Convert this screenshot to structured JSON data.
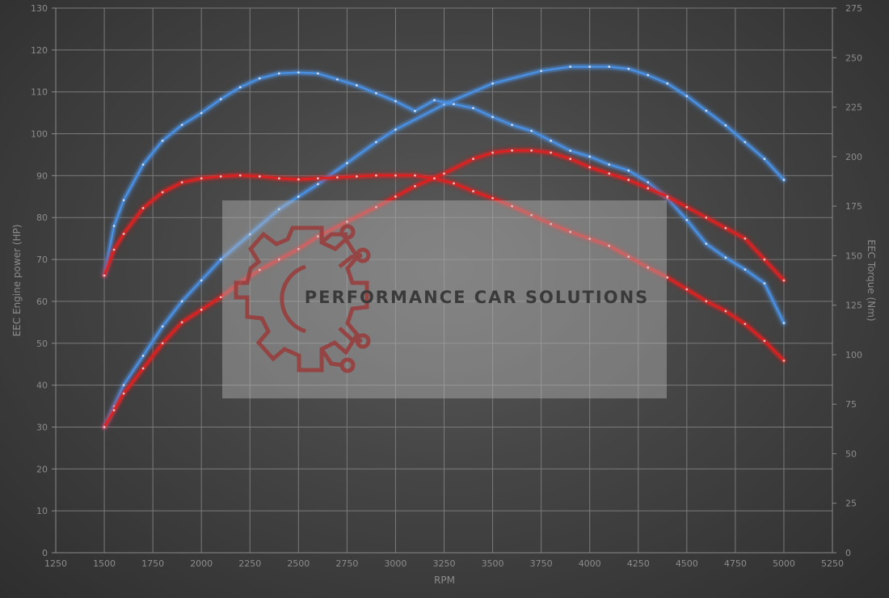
{
  "chart_data": {
    "type": "line",
    "xlabel": "RPM",
    "ylabel_left": "EEC Engine power (HP)",
    "ylabel_right": "EEC Torque (Nm)",
    "xlim": [
      1250,
      5250
    ],
    "ylim_left": [
      0,
      130
    ],
    "ylim_right": [
      0,
      275
    ],
    "x_ticks": [
      1250,
      1500,
      1750,
      2000,
      2250,
      2500,
      2750,
      3000,
      3250,
      3500,
      3750,
      4000,
      4250,
      4500,
      4750,
      5000,
      5250
    ],
    "y_left_ticks": [
      0,
      10,
      20,
      30,
      40,
      50,
      60,
      70,
      80,
      90,
      100,
      110,
      120,
      130
    ],
    "y_right_ticks": [
      0,
      25,
      50,
      75,
      100,
      125,
      150,
      175,
      200,
      225,
      250,
      275
    ],
    "grid": true,
    "series": [
      {
        "axis": "left",
        "color": "#4a90e2",
        "x": [
          1500,
          1550,
          1600,
          1700,
          1800,
          1900,
          2000,
          2100,
          2250,
          2400,
          2500,
          2600,
          2750,
          2900,
          3000,
          3250,
          3500,
          3750,
          3900,
          4000,
          4100,
          4200,
          4300,
          4400,
          4500,
          4600,
          4700,
          4800,
          4900,
          5000
        ],
        "y": [
          30,
          35,
          40,
          47,
          54,
          60,
          65,
          70,
          76,
          82,
          85,
          88,
          93,
          98,
          101,
          107,
          112,
          115,
          116,
          116,
          116,
          115.5,
          114,
          112,
          109,
          105.5,
          102,
          98,
          94,
          89
        ]
      },
      {
        "axis": "right",
        "color": "#4a90e2",
        "x": [
          1500,
          1550,
          1600,
          1700,
          1800,
          1900,
          2000,
          2100,
          2200,
          2300,
          2400,
          2500,
          2600,
          2700,
          2800,
          2900,
          3000,
          3100,
          3200,
          3300,
          3400,
          3500,
          3600,
          3700,
          3800,
          3900,
          4000,
          4100,
          4200,
          4300,
          4400,
          4500,
          4600,
          4700,
          4800,
          4900,
          5000
        ],
        "y": [
          140,
          165,
          178,
          196,
          208,
          216,
          222,
          229,
          235,
          239.5,
          242,
          242.5,
          242,
          239,
          236,
          232,
          228,
          223,
          228.5,
          226.5,
          224.5,
          220,
          216,
          213,
          208,
          203,
          200,
          196,
          193,
          187,
          179,
          168,
          156,
          149,
          143,
          136,
          116
        ]
      },
      {
        "axis": "left",
        "color": "#e02020",
        "x": [
          1500,
          1550,
          1600,
          1700,
          1800,
          1900,
          2000,
          2100,
          2200,
          2300,
          2400,
          2500,
          2600,
          2750,
          2900,
          3000,
          3100,
          3250,
          3400,
          3500,
          3600,
          3700,
          3800,
          3900,
          4000,
          4100,
          4200,
          4300,
          4400,
          4500,
          4600,
          4700,
          4800,
          4900,
          5000
        ],
        "y": [
          30,
          34,
          38,
          44,
          50,
          55,
          58,
          61,
          64.5,
          67.5,
          70,
          72.5,
          75.5,
          79,
          82.5,
          85,
          87.5,
          90.5,
          94,
          95.5,
          96,
          96,
          95.5,
          94,
          92,
          90.5,
          89,
          87,
          85,
          82.5,
          80,
          77.5,
          75,
          70,
          65
        ]
      },
      {
        "axis": "right",
        "color": "#e02020",
        "x": [
          1500,
          1550,
          1600,
          1700,
          1800,
          1900,
          2000,
          2100,
          2200,
          2300,
          2400,
          2500,
          2600,
          2700,
          2800,
          2900,
          3000,
          3100,
          3200,
          3300,
          3400,
          3500,
          3600,
          3700,
          3800,
          3900,
          4000,
          4100,
          4200,
          4300,
          4400,
          4500,
          4600,
          4700,
          4800,
          4900,
          5000
        ],
        "y": [
          140,
          153,
          161,
          174,
          182,
          187,
          189,
          190,
          190.5,
          190,
          189,
          188.5,
          189,
          189.5,
          190,
          190.5,
          190.5,
          190.5,
          189,
          186.5,
          182.5,
          179,
          175,
          170.5,
          166,
          162,
          158.5,
          155,
          149.5,
          144,
          139,
          133,
          127,
          122,
          115.5,
          107,
          97
        ]
      }
    ]
  },
  "watermark": {
    "text": "PERFORMANCE CAR SOLUTIONS"
  }
}
